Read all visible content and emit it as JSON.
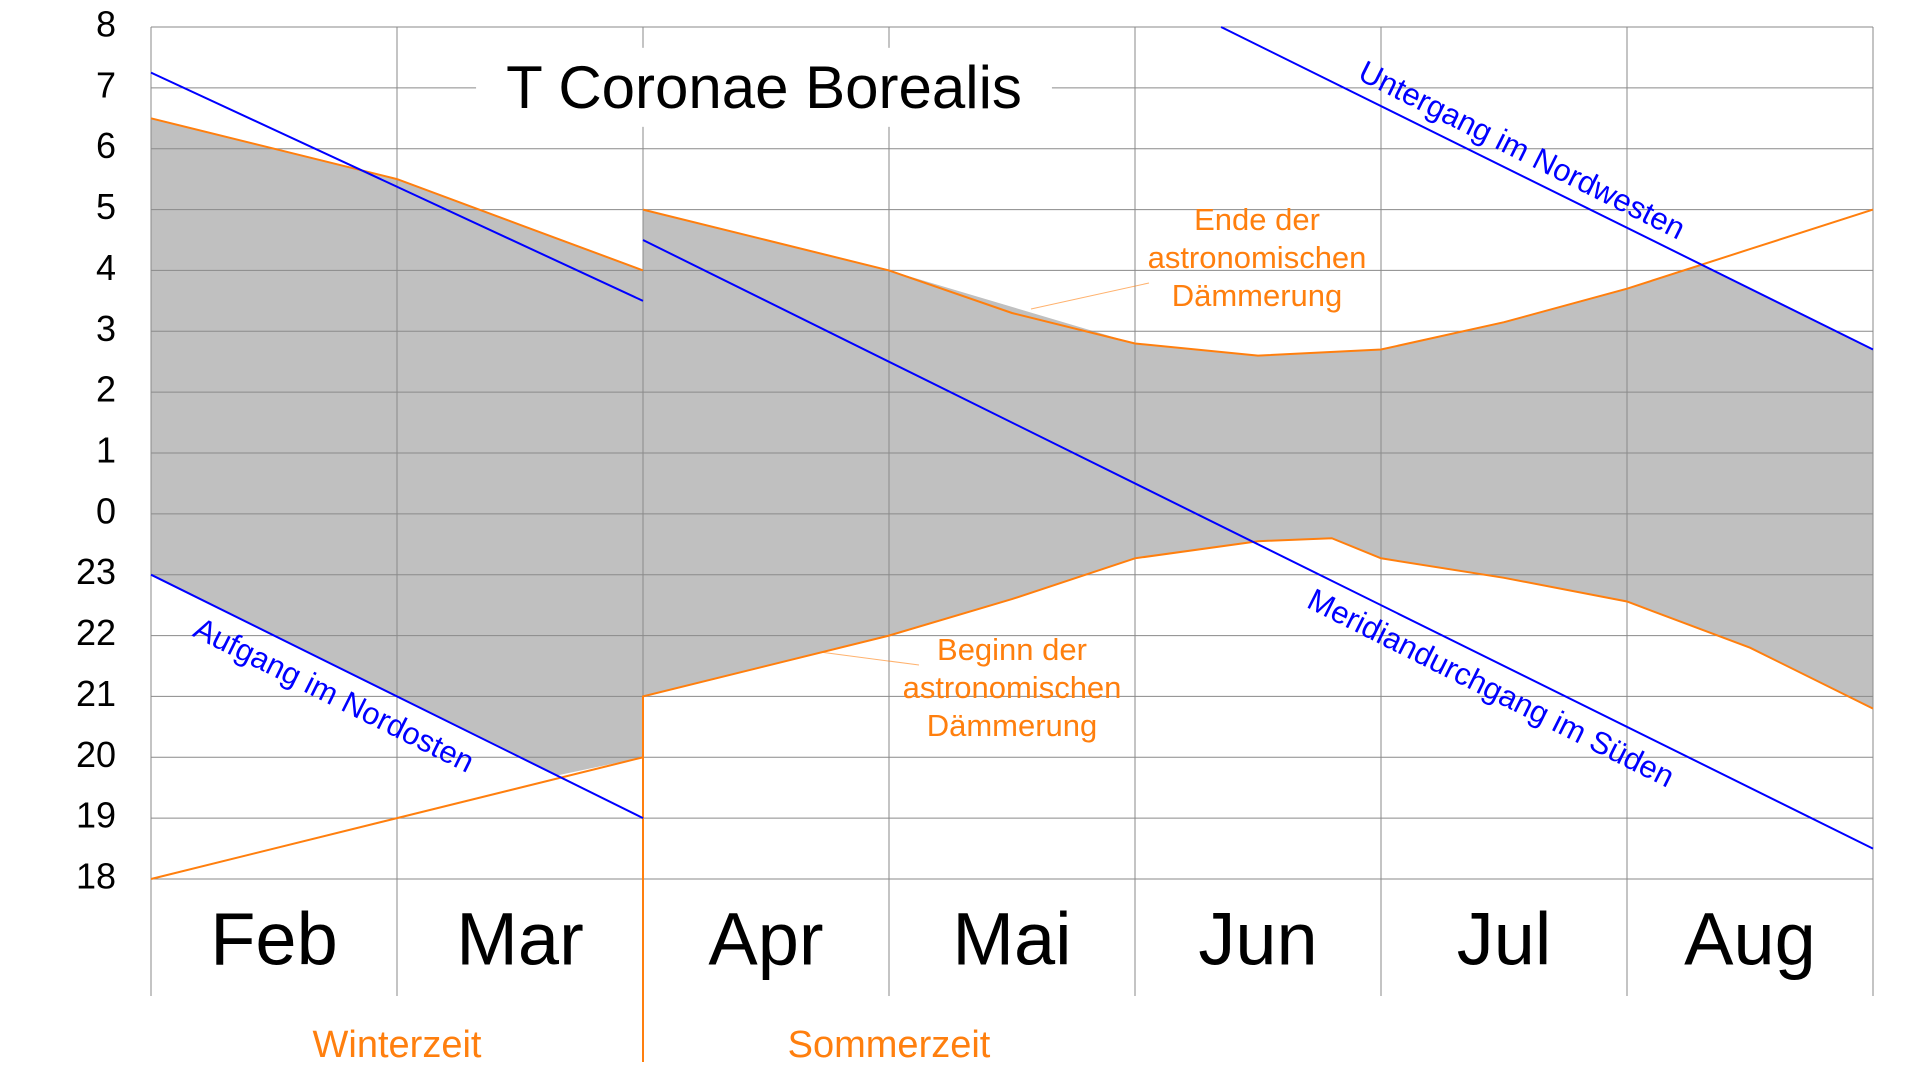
{
  "chart_data": {
    "type": "line",
    "title": "T Coronae Borealis",
    "categories": [
      "Feb",
      "Mar",
      "Apr",
      "Mai",
      "Jun",
      "Jul",
      "Aug"
    ],
    "xlim": [
      0,
      7
    ],
    "xticks": [
      0,
      1,
      2,
      3,
      4,
      5,
      6,
      7
    ],
    "ylim": [
      18,
      32
    ],
    "yticks": [
      18,
      19,
      20,
      21,
      22,
      23,
      {
        "value": 24,
        "label": "0"
      },
      {
        "value": 25,
        "label": "1"
      },
      {
        "value": 26,
        "label": "2"
      },
      {
        "value": 27,
        "label": "3"
      },
      {
        "value": 28,
        "label": "4"
      },
      {
        "value": 29,
        "label": "5"
      },
      {
        "value": 30,
        "label": "6"
      },
      {
        "value": 31,
        "label": "7"
      },
      {
        "value": 32,
        "label": "8"
      }
    ],
    "grid": true,
    "area": {
      "color": "#c0c0c0",
      "upper": {
        "x": [
          0,
          0.5,
          1,
          1.5,
          2,
          2,
          3,
          4,
          4.5,
          5,
          5.5,
          6,
          6.3,
          7
        ],
        "values": [
          30.5,
          30.0,
          29.5,
          28.75,
          28.0,
          29.0,
          28.0,
          26.8,
          26.6,
          26.7,
          27.15,
          27.7,
          28.1,
          26.7
        ]
      },
      "lower": {
        "x": [
          0,
          1,
          1.65,
          2,
          2,
          3,
          3.5,
          4,
          4.5,
          4.8,
          5,
          5.5,
          6,
          6.5,
          7
        ],
        "values": [
          23.0,
          21.0,
          19.7,
          20.0,
          21.0,
          22.0,
          22.6,
          23.27,
          23.55,
          23.6,
          23.27,
          22.95,
          22.56,
          21.8,
          20.8
        ]
      }
    },
    "series": [
      {
        "label": [
          "Ende der",
          "astronomischen",
          "Dämmerung"
        ],
        "color": "#ff7f0e",
        "x": [
          0,
          0.5,
          1,
          1.5,
          2,
          2,
          2,
          2.5,
          3,
          3.5,
          4,
          4.5,
          5,
          5.5,
          6,
          6.5,
          7
        ],
        "values": [
          30.5,
          30.0,
          29.5,
          28.75,
          28.0,
          null,
          29.0,
          28.5,
          28.0,
          27.3,
          26.8,
          26.6,
          26.7,
          27.15,
          27.7,
          28.35,
          29.0
        ]
      },
      {
        "label": [
          "Beginn der",
          "astronomischen",
          "Dämmerung"
        ],
        "color": "#ff7f0e",
        "x": [
          0,
          1,
          2,
          2,
          3,
          3.5,
          4,
          4.5,
          4.8,
          5,
          5.5,
          6,
          6.5,
          7
        ],
        "values": [
          18,
          19,
          20,
          21,
          22,
          22.6,
          23.27,
          23.55,
          23.6,
          23.27,
          22.95,
          22.56,
          21.8,
          20.8
        ]
      },
      {
        "label": "Untergang im Nordwesten",
        "color": "#0000ff",
        "x": [
          4.35,
          7
        ],
        "values": [
          32,
          26.7
        ]
      },
      {
        "label": "Aufgang im Nordosten",
        "color": "#0000ff",
        "x": [
          0,
          2
        ],
        "values": [
          23,
          19
        ]
      },
      {
        "label": "Meridiandurchgang im Süden",
        "color": "#0000ff",
        "x": [
          0,
          2,
          2,
          2,
          7
        ],
        "values": [
          31.25,
          27.5,
          null,
          28.5,
          18.5
        ]
      }
    ],
    "footer_labels": [
      "Winterzeit",
      "Sommerzeit"
    ]
  }
}
